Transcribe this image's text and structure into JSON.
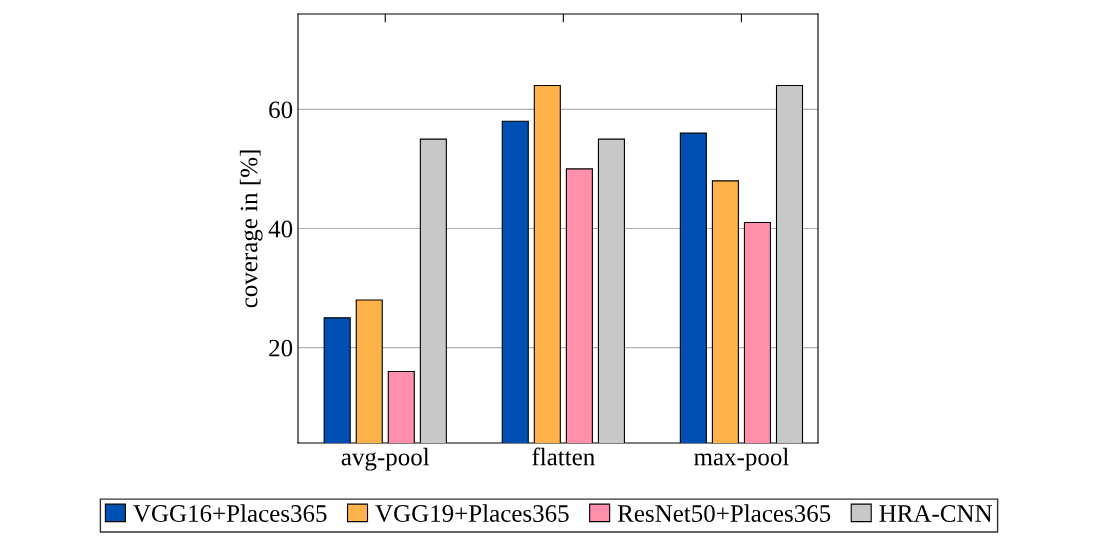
{
  "chart_data": {
    "type": "bar",
    "ylabel": "coverage in [%]",
    "categories": [
      "avg-pool",
      "flatten",
      "max-pool"
    ],
    "series": [
      {
        "name": "VGG16+Places365",
        "color": "#0050b4",
        "values": [
          25,
          58,
          56
        ]
      },
      {
        "name": "VGG19+Places365",
        "color": "#ffb24a",
        "values": [
          28,
          64,
          48
        ]
      },
      {
        "name": "ResNet50+Places365",
        "color": "#ff8fab",
        "values": [
          16,
          50,
          41
        ]
      },
      {
        "name": "HRA-CNN",
        "color": "#c8c8c8",
        "values": [
          55,
          55,
          64
        ]
      }
    ],
    "ylim": [
      4,
      76
    ],
    "yticks": [
      20,
      40,
      60
    ],
    "grid": "y",
    "legend": "bottom"
  }
}
